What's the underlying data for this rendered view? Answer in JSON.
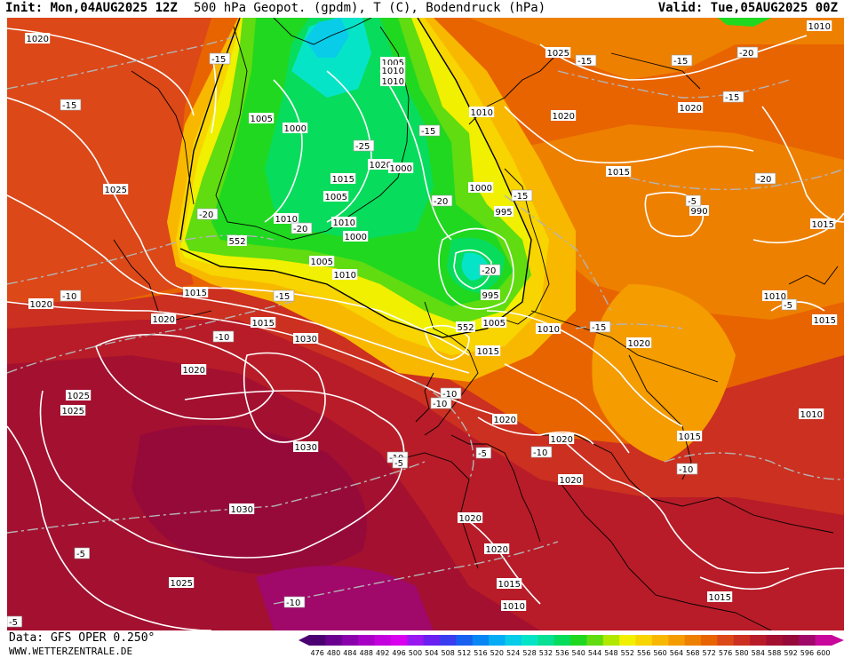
{
  "header": {
    "init": "Init: Mon,04AUG2025 12Z",
    "title": "500 hPa Geopot. (gpdm), T (C), Bodendruck (hPa)",
    "valid": "Valid: Tue,05AUG2025 00Z"
  },
  "footer": {
    "data_source": "Data: GFS OPER 0.250°",
    "website": "WWW.WETTERZENTRALE.DE"
  },
  "legend": {
    "ticks": [
      "476",
      "480",
      "484",
      "488",
      "492",
      "496",
      "500",
      "504",
      "508",
      "512",
      "516",
      "520",
      "524",
      "528",
      "532",
      "536",
      "540",
      "544",
      "548",
      "552",
      "556",
      "560",
      "564",
      "568",
      "572",
      "576",
      "580",
      "584",
      "588",
      "592",
      "596",
      "600"
    ],
    "colors": [
      "#4b0072",
      "#6a0090",
      "#8a00aa",
      "#a800c4",
      "#c400dc",
      "#d800ee",
      "#9a18f0",
      "#6a20f0",
      "#3a3cf0",
      "#1860f0",
      "#0a86f4",
      "#08acf4",
      "#08cce8",
      "#06e4c8",
      "#08e094",
      "#08dc5c",
      "#20d820",
      "#60dc10",
      "#b0e800",
      "#f0f000",
      "#f8d400",
      "#f8b800",
      "#f49c00",
      "#ee8000",
      "#e86400",
      "#dc4818",
      "#cc3020",
      "#b81c28",
      "#a41030",
      "#960a3a",
      "#a0086a",
      "#c8089c"
    ]
  },
  "map": {
    "pressure_labels": [
      "1020",
      "1025",
      "1015",
      "1005",
      "1000",
      "1010",
      "1005",
      "1010",
      "1020",
      "1000",
      "1015",
      "1005",
      "1010",
      "1010",
      "1000",
      "1005",
      "1010",
      "1000",
      "995",
      "1010",
      "1020",
      "1015",
      "1025",
      "1030",
      "1020",
      "1025",
      "1030",
      "1030",
      "1025",
      "1020",
      "1020",
      "1020",
      "1015",
      "1010",
      "1020",
      "1020",
      "1020",
      "1015",
      "1010",
      "1015",
      "1010",
      "1015",
      "1020",
      "1005",
      "1015",
      "552",
      "552",
      "995",
      "990",
      "1010",
      "1020",
      "1015",
      "1010",
      "1025",
      "1015",
      "1020"
    ],
    "temp_labels": [
      "-15",
      "-15",
      "-20",
      "-10",
      "-25",
      "-15",
      "-20",
      "-20",
      "-15",
      "-15",
      "-15",
      "-15",
      "-10",
      "-15",
      "-10",
      "-10",
      "-10",
      "-20",
      "-10",
      "-10",
      "-5",
      "-5",
      "-10",
      "-5",
      "-5",
      "-5",
      "-5",
      "-20",
      "-15",
      "-20"
    ]
  }
}
